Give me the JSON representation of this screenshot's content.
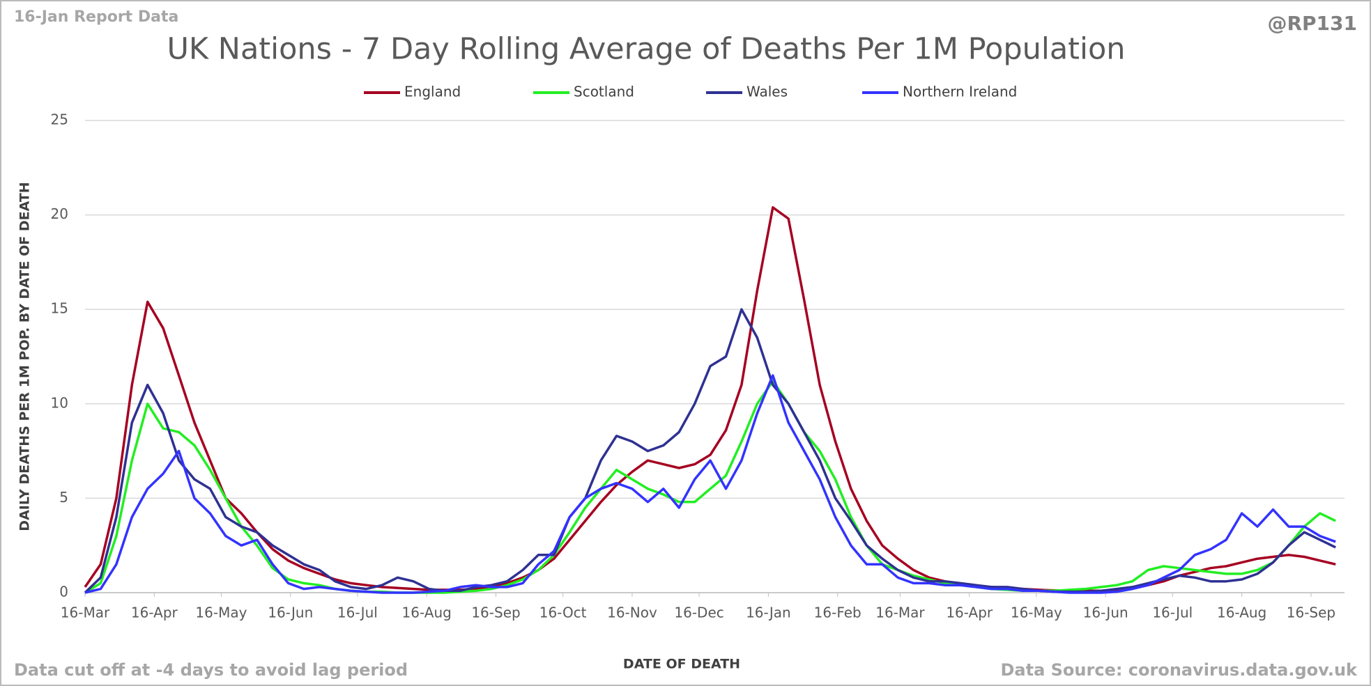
{
  "chart_data": {
    "type": "line",
    "title": "UK Nations - 7 Day Rolling Average of Deaths Per 1M Population",
    "report_label": "16-Jan Report Data",
    "handle": "@RP131",
    "note": "Data cut off at -4 days to avoid lag period",
    "source": "Data Source: coronavirus.data.gov.uk",
    "x_label": "DATE OF DEATH",
    "y_label": "DAILY DEATHS PER 1M POP. BY DATE OF DEATH",
    "grid": true,
    "legend": "top",
    "xlim": [
      0,
      564
    ],
    "ylim": [
      0,
      25
    ],
    "yticks": [
      0,
      5,
      10,
      15,
      20,
      25
    ],
    "xticks": [
      {
        "value": 0,
        "label": "16-Mar"
      },
      {
        "value": 31,
        "label": "16-Apr"
      },
      {
        "value": 61,
        "label": "16-May"
      },
      {
        "value": 92,
        "label": "16-Jun"
      },
      {
        "value": 122,
        "label": "16-Jul"
      },
      {
        "value": 153,
        "label": "16-Aug"
      },
      {
        "value": 184,
        "label": "16-Sep"
      },
      {
        "value": 214,
        "label": "16-Oct"
      },
      {
        "value": 245,
        "label": "16-Nov"
      },
      {
        "value": 275,
        "label": "16-Dec"
      },
      {
        "value": 306,
        "label": "16-Jan"
      },
      {
        "value": 337,
        "label": "16-Feb"
      },
      {
        "value": 365,
        "label": "16-Mar"
      },
      {
        "value": 396,
        "label": "16-Apr"
      },
      {
        "value": 426,
        "label": "16-May"
      },
      {
        "value": 457,
        "label": "16-Jun"
      },
      {
        "value": 487,
        "label": "16-Jul"
      },
      {
        "value": 518,
        "label": "16-Aug"
      },
      {
        "value": 549,
        "label": "16-Sep"
      }
    ],
    "x": [
      0,
      7,
      14,
      21,
      28,
      35,
      42,
      49,
      56,
      63,
      70,
      77,
      84,
      91,
      98,
      105,
      112,
      119,
      126,
      133,
      140,
      147,
      154,
      161,
      168,
      175,
      182,
      189,
      196,
      203,
      210,
      217,
      224,
      231,
      238,
      245,
      252,
      259,
      266,
      273,
      280,
      287,
      294,
      301,
      308,
      315,
      322,
      329,
      336,
      343,
      350,
      357,
      364,
      371,
      378,
      385,
      392,
      399,
      406,
      413,
      420,
      427,
      434,
      441,
      448,
      455,
      462,
      469,
      476,
      483,
      490,
      497,
      504,
      511,
      518,
      525,
      532,
      539,
      546,
      553,
      560
    ],
    "series": [
      {
        "name": "England",
        "color": "#a50021",
        "values": [
          0.3,
          1.5,
          5,
          11,
          15.4,
          14,
          11.5,
          9,
          7,
          5,
          4.2,
          3.2,
          2.3,
          1.7,
          1.3,
          1.0,
          0.7,
          0.5,
          0.4,
          0.3,
          0.25,
          0.2,
          0.15,
          0.15,
          0.15,
          0.2,
          0.3,
          0.5,
          0.8,
          1.2,
          1.8,
          2.8,
          3.8,
          4.8,
          5.7,
          6.4,
          7.0,
          6.8,
          6.6,
          6.8,
          7.3,
          8.6,
          11,
          16,
          20.4,
          19.8,
          15.5,
          11,
          8,
          5.5,
          3.8,
          2.5,
          1.8,
          1.2,
          0.8,
          0.6,
          0.45,
          0.35,
          0.3,
          0.25,
          0.2,
          0.15,
          0.12,
          0.1,
          0.1,
          0.1,
          0.15,
          0.25,
          0.4,
          0.6,
          0.9,
          1.1,
          1.3,
          1.4,
          1.6,
          1.8,
          1.9,
          2.0,
          1.9,
          1.7,
          1.5
        ]
      },
      {
        "name": "Scotland",
        "color": "#22ee22",
        "values": [
          0,
          0.5,
          3,
          7,
          10,
          8.7,
          8.5,
          7.8,
          6.5,
          5,
          3.5,
          2.5,
          1.3,
          0.7,
          0.5,
          0.4,
          0.2,
          0.1,
          0.05,
          0.05,
          0,
          0,
          0,
          0,
          0.05,
          0.1,
          0.2,
          0.4,
          0.7,
          1.2,
          2,
          3.2,
          4.5,
          5.5,
          6.5,
          6,
          5.5,
          5.2,
          4.8,
          4.8,
          5.5,
          6.2,
          8,
          10,
          11.2,
          10,
          8.5,
          7.5,
          6,
          4,
          2.5,
          1.5,
          1.2,
          0.9,
          0.7,
          0.5,
          0.4,
          0.3,
          0.2,
          0.15,
          0.1,
          0.1,
          0.1,
          0.15,
          0.2,
          0.3,
          0.4,
          0.6,
          1.2,
          1.4,
          1.3,
          1.2,
          1.1,
          1.0,
          1.0,
          1.2,
          1.6,
          2.5,
          3.5,
          4.2,
          3.8
        ]
      },
      {
        "name": "Wales",
        "color": "#2e3192",
        "values": [
          0,
          0.8,
          4,
          9,
          11,
          9.5,
          7,
          6,
          5.5,
          4,
          3.5,
          3.2,
          2.5,
          2,
          1.5,
          1.2,
          0.6,
          0.3,
          0.2,
          0.4,
          0.8,
          0.6,
          0.2,
          0.1,
          0.1,
          0.3,
          0.4,
          0.6,
          1.2,
          2,
          2,
          4,
          5,
          7,
          8.3,
          8,
          7.5,
          7.8,
          8.5,
          10,
          12,
          12.5,
          15,
          13.5,
          11,
          10,
          8.5,
          7,
          5,
          3.8,
          2.5,
          1.8,
          1.2,
          0.8,
          0.6,
          0.6,
          0.5,
          0.4,
          0.3,
          0.3,
          0.2,
          0.1,
          0.05,
          0.05,
          0.05,
          0.1,
          0.2,
          0.3,
          0.5,
          0.7,
          0.9,
          0.8,
          0.6,
          0.6,
          0.7,
          1.0,
          1.6,
          2.5,
          3.2,
          2.8,
          2.4
        ]
      },
      {
        "name": "Northern Ireland",
        "color": "#3333ff",
        "values": [
          0,
          0.2,
          1.5,
          4,
          5.5,
          6.3,
          7.5,
          5,
          4.2,
          3,
          2.5,
          2.8,
          1.5,
          0.5,
          0.2,
          0.3,
          0.2,
          0.1,
          0.05,
          0,
          0,
          0,
          0.05,
          0.1,
          0.3,
          0.4,
          0.3,
          0.3,
          0.5,
          1.5,
          2.2,
          4,
          5,
          5.5,
          5.8,
          5.5,
          4.8,
          5.5,
          4.5,
          6,
          7,
          5.5,
          7,
          9.5,
          11.5,
          9,
          7.5,
          6,
          4,
          2.5,
          1.5,
          1.5,
          0.8,
          0.5,
          0.5,
          0.4,
          0.4,
          0.3,
          0.2,
          0.2,
          0.1,
          0.1,
          0.05,
          0,
          0,
          0,
          0.05,
          0.2,
          0.4,
          0.8,
          1.2,
          2,
          2.3,
          2.8,
          4.2,
          3.5,
          4.4,
          3.5,
          3.5,
          3.0,
          2.7
        ]
      }
    ]
  }
}
